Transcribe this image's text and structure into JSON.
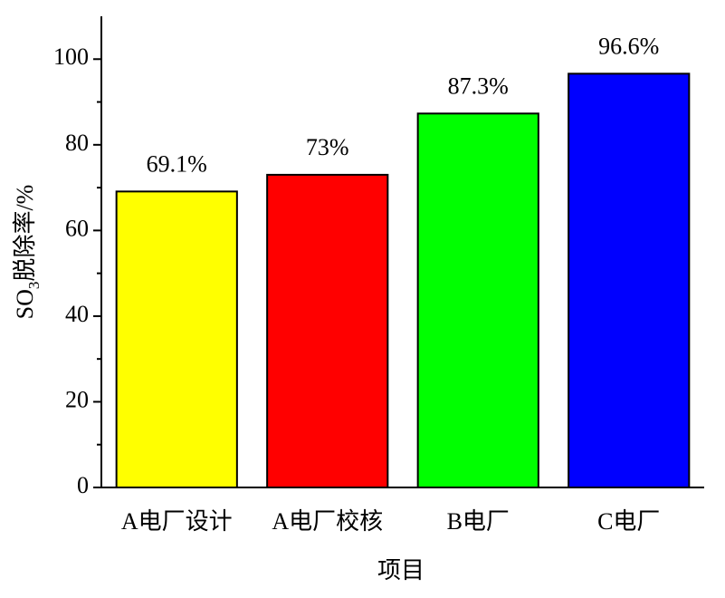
{
  "chart_data": {
    "type": "bar",
    "categories": [
      "A电厂设计",
      "A电厂校核",
      "B电厂",
      "C电厂"
    ],
    "values": [
      69.1,
      73,
      87.3,
      96.6
    ],
    "value_labels": [
      "69.1%",
      "73%",
      "87.3%",
      "96.6%"
    ],
    "colors": [
      "#ffff00",
      "#ff0000",
      "#00ff00",
      "#0000ff"
    ],
    "x_label": "项目",
    "y_label": "SO3脱除率/%",
    "ylim": [
      0,
      110
    ],
    "yticks": [
      0,
      20,
      40,
      60,
      80,
      100
    ],
    "grid": false
  }
}
